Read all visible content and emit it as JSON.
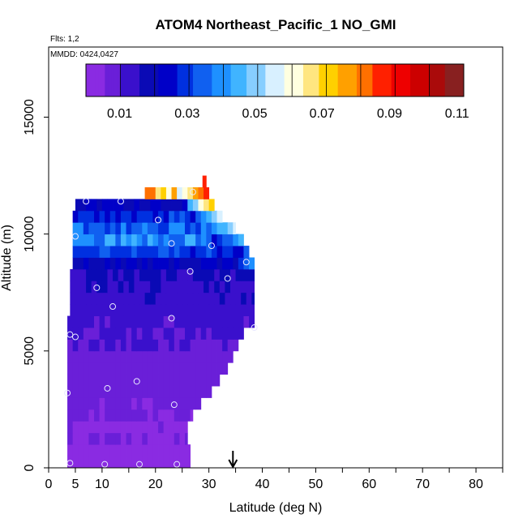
{
  "chart_data": {
    "type": "heatmap",
    "title": "ATOM4 Northeast_Pacific_1 NO_GMI",
    "flights_label": "Flts: 1,2",
    "dates_label": "MMDD: 0424,0427",
    "xlabel": "Latitude (deg N)",
    "ylabel": "Altitude (m)",
    "xlim": [
      0,
      85
    ],
    "ylim": [
      0,
      18000
    ],
    "x_ticks": [
      0,
      5,
      10,
      20,
      30,
      40,
      50,
      60,
      70,
      80
    ],
    "y_ticks": [
      0,
      5000,
      10000,
      15000
    ],
    "colorbar": {
      "range": [
        0,
        0.112
      ],
      "tick_values": [
        0.01,
        0.03,
        0.05,
        0.07,
        0.09,
        0.11
      ],
      "tick_labels": [
        "0.01",
        "0.03",
        "0.05",
        "0.07",
        "0.09",
        "0.11"
      ],
      "colors": [
        "#8a2be2",
        "#6a1fd8",
        "#3a10cc",
        "#0a0ab5",
        "#0000c8",
        "#0030e0",
        "#1060f0",
        "#1e90ff",
        "#40b4ff",
        "#87ceff",
        "#d8f0ff",
        "#ffffe0",
        "#ffe680",
        "#ffd000",
        "#ffa000",
        "#ff7000",
        "#ff2000",
        "#ee0000",
        "#cc0000",
        "#aa0a0a",
        "#882020"
      ]
    },
    "bins": {
      "lat_start": 3.5,
      "lat_step": 1.0,
      "alt_start": 0,
      "alt_step": 500
    },
    "profile": [
      {
        "alt": 0,
        "lat_min": 3.5,
        "lat_max": 26.5,
        "value": 0.004
      },
      {
        "alt": 500,
        "lat_min": 3.5,
        "lat_max": 26.5,
        "value": 0.004
      },
      {
        "alt": 1000,
        "lat_min": 3.5,
        "lat_max": 26.0,
        "value": 0.005
      },
      {
        "alt": 1500,
        "lat_min": 3.5,
        "lat_max": 26.0,
        "value": 0.005
      },
      {
        "alt": 2000,
        "lat_min": 3.5,
        "lat_max": 27.0,
        "value": 0.006
      },
      {
        "alt": 2500,
        "lat_min": 3.5,
        "lat_max": 28.5,
        "value": 0.006
      },
      {
        "alt": 3000,
        "lat_min": 3.5,
        "lat_max": 30.5,
        "value": 0.007
      },
      {
        "alt": 3500,
        "lat_min": 3.5,
        "lat_max": 32.0,
        "value": 0.007
      },
      {
        "alt": 4000,
        "lat_min": 3.5,
        "lat_max": 33.5,
        "value": 0.008
      },
      {
        "alt": 4500,
        "lat_min": 3.5,
        "lat_max": 34.5,
        "value": 0.009
      },
      {
        "alt": 5000,
        "lat_min": 3.5,
        "lat_max": 35.5,
        "value": 0.01
      },
      {
        "alt": 5500,
        "lat_min": 3.5,
        "lat_max": 36.5,
        "value": 0.011
      },
      {
        "alt": 6000,
        "lat_min": 3.5,
        "lat_max": 38.5,
        "value": 0.012
      },
      {
        "alt": 6500,
        "lat_min": 4.0,
        "lat_max": 38.5,
        "value": 0.013
      },
      {
        "alt": 7000,
        "lat_min": 4.0,
        "lat_max": 38.5,
        "value": 0.014
      },
      {
        "alt": 7500,
        "lat_min": 4.0,
        "lat_max": 38.5,
        "value": 0.015
      },
      {
        "alt": 8000,
        "lat_min": 4.0,
        "lat_max": 38.5,
        "value": 0.018
      },
      {
        "alt": 8500,
        "lat_min": 4.5,
        "lat_max": 38.5,
        "value": 0.022
      },
      {
        "alt": 9000,
        "lat_min": 4.5,
        "lat_max": 37.5,
        "value": 0.03
      },
      {
        "alt": 9500,
        "lat_min": 4.5,
        "lat_max": 36.5,
        "value": 0.04
      },
      {
        "alt": 10000,
        "lat_min": 4.5,
        "lat_max": 35.0,
        "value": 0.035
      },
      {
        "alt": 10500,
        "lat_min": 4.5,
        "lat_max": 32.5,
        "value": 0.028
      },
      {
        "alt": 11000,
        "lat_min": 5.0,
        "lat_max": 31.0,
        "value": 0.02
      },
      {
        "alt": 11500,
        "lat_min": 18.0,
        "lat_max": 30.0,
        "value": 0.07
      },
      {
        "alt": 12000,
        "lat_min": 28.8,
        "lat_max": 29.5,
        "value": 0.1
      }
    ],
    "hot_spots": [
      {
        "alt": 11500,
        "lat_min": 24.0,
        "lat_max": 30.0,
        "value": 0.098
      },
      {
        "alt": 11000,
        "lat_min": 25.5,
        "lat_max": 31.0,
        "value": 0.078
      },
      {
        "alt": 10500,
        "lat_min": 27.5,
        "lat_max": 32.5,
        "value": 0.062
      },
      {
        "alt": 10000,
        "lat_min": 29.0,
        "lat_max": 35.0,
        "value": 0.058
      },
      {
        "alt": 9500,
        "lat_min": 30.5,
        "lat_max": 36.5,
        "value": 0.048
      },
      {
        "alt": 8500,
        "lat_min": 35.0,
        "lat_max": 38.5,
        "value": 0.045
      }
    ],
    "points": [
      {
        "lat": 4.0,
        "alt": 200
      },
      {
        "lat": 10.5,
        "alt": 150
      },
      {
        "lat": 17.0,
        "alt": 150
      },
      {
        "lat": 24.0,
        "alt": 150
      },
      {
        "lat": 3.5,
        "alt": 3200
      },
      {
        "lat": 11.0,
        "alt": 3400
      },
      {
        "lat": 16.5,
        "alt": 3700
      },
      {
        "lat": 23.5,
        "alt": 2700
      },
      {
        "lat": 4.0,
        "alt": 5700
      },
      {
        "lat": 5.0,
        "alt": 5600
      },
      {
        "lat": 23.0,
        "alt": 6400
      },
      {
        "lat": 12.0,
        "alt": 6900
      },
      {
        "lat": 9.0,
        "alt": 7700
      },
      {
        "lat": 26.5,
        "alt": 8400
      },
      {
        "lat": 33.5,
        "alt": 8100
      },
      {
        "lat": 37.0,
        "alt": 8800
      },
      {
        "lat": 38.5,
        "alt": 6000
      },
      {
        "lat": 5.0,
        "alt": 9900
      },
      {
        "lat": 23.0,
        "alt": 9600
      },
      {
        "lat": 30.5,
        "alt": 9500
      },
      {
        "lat": 20.5,
        "alt": 10600
      },
      {
        "lat": 7.0,
        "alt": 11400
      },
      {
        "lat": 13.5,
        "alt": 11400
      },
      {
        "lat": 27.0,
        "alt": 11800
      }
    ],
    "arrow_lat": 34.5
  }
}
